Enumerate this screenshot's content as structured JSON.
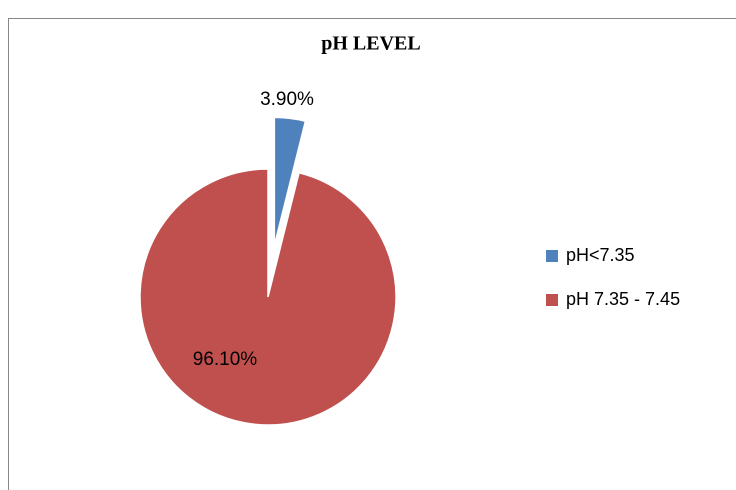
{
  "chart_data": {
    "type": "pie",
    "title": "pH LEVEL",
    "categories": [
      "pH<7.35",
      "pH 7.35 - 7.45"
    ],
    "values": [
      3.9,
      96.1
    ],
    "value_labels": [
      "3.90%",
      "96.10%"
    ],
    "colors": [
      "#4f81bd",
      "#c0504d"
    ],
    "legend": "right"
  }
}
